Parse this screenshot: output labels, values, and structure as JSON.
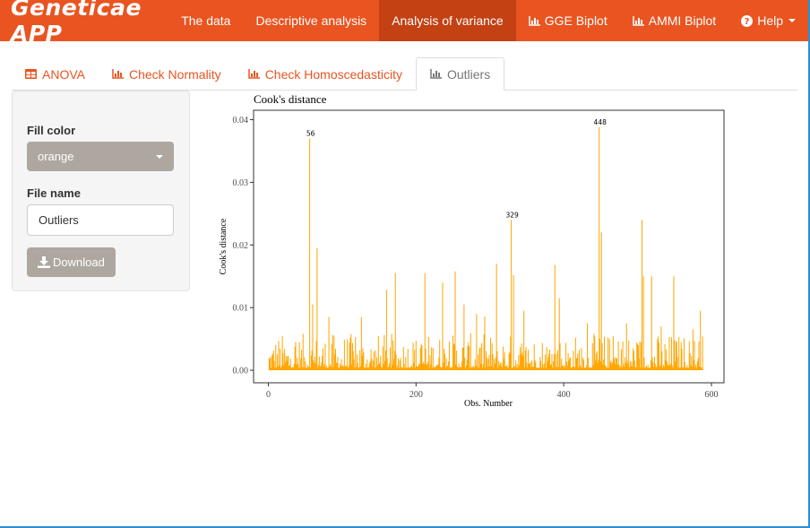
{
  "navbar": {
    "brand": "Geneticae APP",
    "items": [
      {
        "label": "The data",
        "active": false,
        "icon": ""
      },
      {
        "label": "Descriptive analysis",
        "active": false,
        "icon": ""
      },
      {
        "label": "Analysis of variance",
        "active": true,
        "icon": ""
      },
      {
        "label": "GGE Biplot",
        "active": false,
        "icon": "bar-chart-icon"
      },
      {
        "label": "AMMI Biplot",
        "active": false,
        "icon": "bar-chart-icon"
      },
      {
        "label": "Help",
        "active": false,
        "icon": "question-circle-icon",
        "dropdown": true
      }
    ]
  },
  "tabs": [
    {
      "label": "ANOVA",
      "icon": "table-icon",
      "active": false
    },
    {
      "label": "Check Normality",
      "icon": "bar-chart-icon",
      "active": false
    },
    {
      "label": "Check Homoscedasticity",
      "icon": "bar-chart-icon",
      "active": false
    },
    {
      "label": "Outliers",
      "icon": "bar-chart-icon",
      "active": true
    }
  ],
  "sidebar": {
    "fill_color_label": "Fill color",
    "fill_color_value": "orange",
    "file_name_label": "File name",
    "file_name_value": "Outliers",
    "download_label": "Download"
  },
  "colors": {
    "accent": "#e95420",
    "accent_dark": "#c34113",
    "bars": "#ffa500",
    "button": "#aea79f"
  },
  "chart_data": {
    "type": "bar",
    "title": "Cook's distance",
    "xlabel": "Obs. Number",
    "ylabel": "Cook's distance",
    "xlim": [
      -20,
      617
    ],
    "ylim": [
      -0.002,
      0.0415
    ],
    "xticks": [
      0,
      200,
      400,
      600
    ],
    "yticks": [
      0.0,
      0.01,
      0.02,
      0.03,
      0.04
    ],
    "ytick_labels": [
      "0.00",
      "0.01",
      "0.02",
      "0.03",
      "0.04"
    ],
    "n_obs": 588,
    "labeled_points": [
      {
        "x": 56,
        "y": 0.037,
        "label": "56"
      },
      {
        "x": 329,
        "y": 0.024,
        "label": "329"
      },
      {
        "x": 448,
        "y": 0.0388,
        "label": "448"
      }
    ],
    "peaks": [
      {
        "x": 66,
        "y": 0.0195
      },
      {
        "x": 60,
        "y": 0.0105
      },
      {
        "x": 82,
        "y": 0.0085
      },
      {
        "x": 160,
        "y": 0.0128
      },
      {
        "x": 172,
        "y": 0.0155
      },
      {
        "x": 212,
        "y": 0.0155
      },
      {
        "x": 236,
        "y": 0.014
      },
      {
        "x": 253,
        "y": 0.0158
      },
      {
        "x": 265,
        "y": 0.0105
      },
      {
        "x": 309,
        "y": 0.017
      },
      {
        "x": 332,
        "y": 0.0152
      },
      {
        "x": 346,
        "y": 0.0095
      },
      {
        "x": 388,
        "y": 0.0168
      },
      {
        "x": 394,
        "y": 0.0115
      },
      {
        "x": 432,
        "y": 0.0075
      },
      {
        "x": 451,
        "y": 0.022
      },
      {
        "x": 506,
        "y": 0.024
      },
      {
        "x": 508,
        "y": 0.015
      },
      {
        "x": 519,
        "y": 0.015
      },
      {
        "x": 549,
        "y": 0.015
      },
      {
        "x": 585,
        "y": 0.0095
      },
      {
        "x": 126,
        "y": 0.0085
      },
      {
        "x": 282,
        "y": 0.009
      },
      {
        "x": 485,
        "y": 0.0075
      },
      {
        "x": 532,
        "y": 0.007
      },
      {
        "x": 575,
        "y": 0.0065
      }
    ]
  }
}
